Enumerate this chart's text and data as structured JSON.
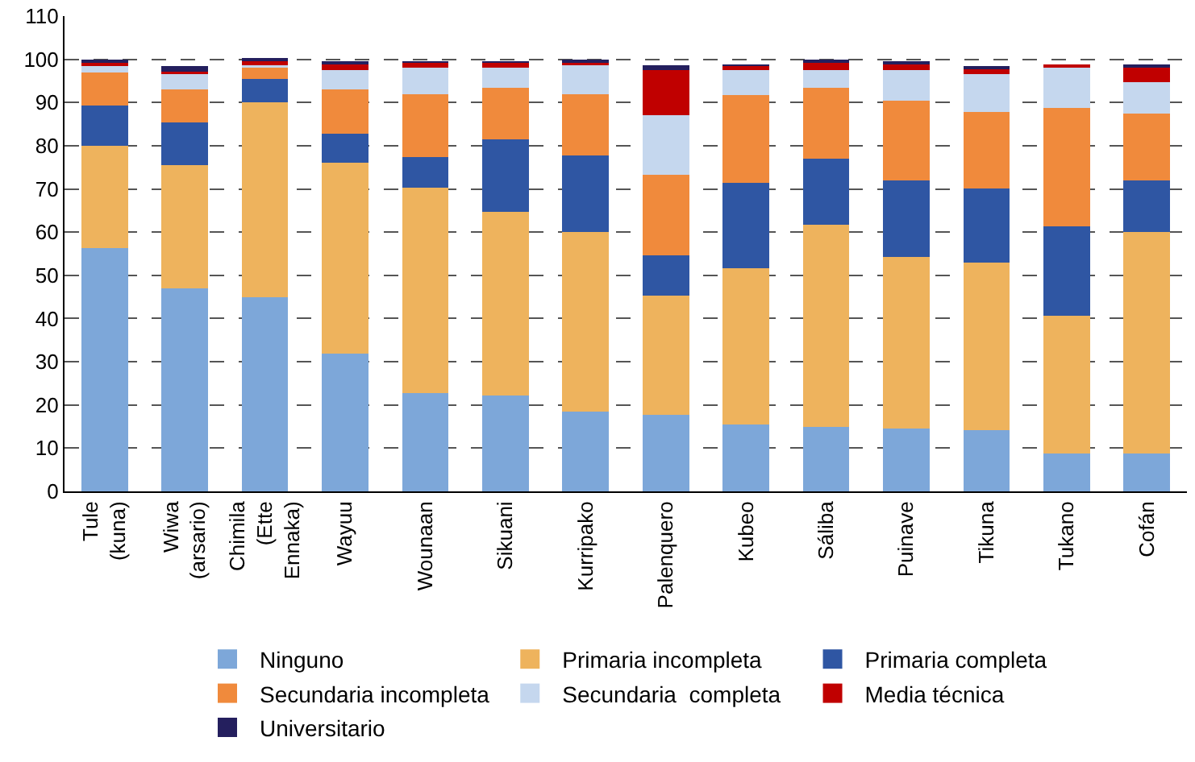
{
  "chart_data": {
    "type": "bar",
    "stacked": true,
    "categories": [
      "Tule (kuna)",
      "Wiwa (arsario)",
      "Chimila (Ette Ennaka)",
      "Wayuu",
      "Wounaan",
      "Sikuani",
      "Kurripako",
      "Palenquero",
      "Kubeo",
      "Sáliba",
      "Puinave",
      "Tikuna",
      "Tukano",
      "Cofán"
    ],
    "series": [
      {
        "name": "Ninguno",
        "color": "#7da7d9",
        "values": [
          56.3,
          47,
          44.9,
          31.8,
          22.7,
          22.1,
          18.4,
          17.8,
          15.4,
          15,
          14.6,
          14.1,
          8.7,
          8.7
        ]
      },
      {
        "name": "Primaria incompleta",
        "color": "#eeb35d",
        "values": [
          23.7,
          28.5,
          45.1,
          44.2,
          47.6,
          42.6,
          41.7,
          27.6,
          36.3,
          46.8,
          39.7,
          38.9,
          32,
          51.4
        ]
      },
      {
        "name": "Primaria completa",
        "color": "#2f56a3",
        "values": [
          9.3,
          9.8,
          5.5,
          6.8,
          7,
          16.8,
          17.7,
          9.2,
          19.7,
          15.2,
          17.6,
          17.1,
          20.7,
          11.8
        ]
      },
      {
        "name": "Secundaria incompleta",
        "color": "#f08a3c",
        "values": [
          7.7,
          7.7,
          2.6,
          10.2,
          14.7,
          12,
          14.2,
          18.6,
          20.3,
          16.5,
          18.6,
          17.8,
          27.4,
          15.5
        ]
      },
      {
        "name": "Secundaria  completa",
        "color": "#c5d7ee",
        "values": [
          1.5,
          3.7,
          0.5,
          4.5,
          6.1,
          4.5,
          6.7,
          13.9,
          5.9,
          4,
          7,
          8.7,
          9.3,
          7.3
        ]
      },
      {
        "name": "Media técnica",
        "color": "#c00000",
        "values": [
          1,
          0.5,
          1,
          1.5,
          1.1,
          1.2,
          0.8,
          10.4,
          0.9,
          1.8,
          1.5,
          1.1,
          0.8,
          3.6
        ]
      },
      {
        "name": "Universitario",
        "color": "#241f5e",
        "values": [
          0.5,
          1.3,
          0.5,
          0.5,
          0.3,
          0.2,
          0.5,
          1.2,
          0.2,
          0.5,
          0.3,
          0.4,
          0,
          0.4
        ]
      }
    ],
    "ylim": [
      0,
      110
    ],
    "yticks": [
      0,
      10,
      20,
      30,
      40,
      50,
      60,
      70,
      80,
      90,
      100,
      110
    ],
    "grid": "y",
    "legend": "bottom"
  }
}
